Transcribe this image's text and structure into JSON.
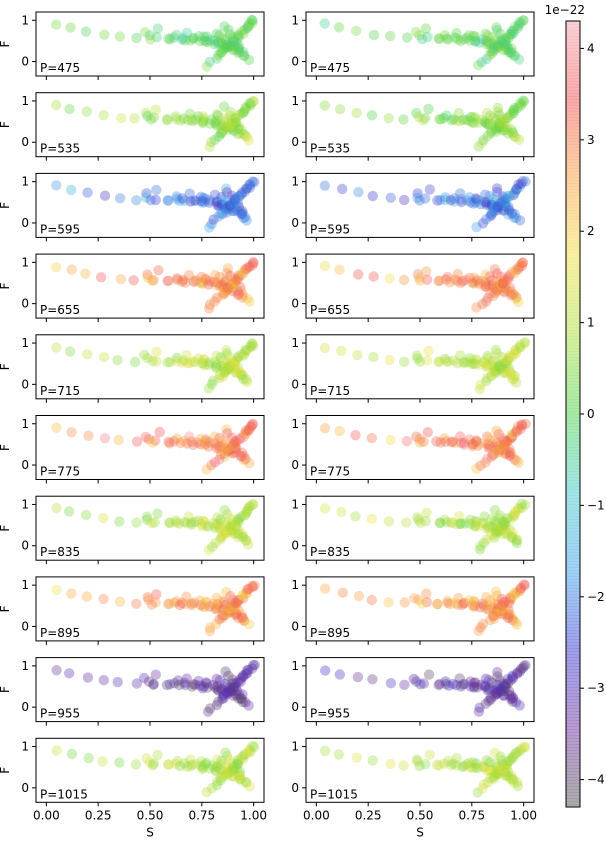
{
  "chart_data": {
    "type": "scatter",
    "xlabel": "S",
    "ylabel": "F",
    "xlim": [
      -0.05,
      1.05
    ],
    "ylim": [
      -0.35,
      1.2
    ],
    "x_ticks": [
      0.0,
      0.25,
      0.5,
      0.75,
      1.0
    ],
    "x_tick_labels": [
      "0.00",
      "0.25",
      "0.50",
      "0.75",
      "1.00"
    ],
    "y_ticks": [
      0,
      1
    ],
    "y_tick_labels": [
      "0",
      "1"
    ],
    "layout": "10 rows x 2 columns of panels, shared axes",
    "panel_labels": [
      "P=475",
      "P=535",
      "P=595",
      "P=655",
      "P=715",
      "P=775",
      "P=835",
      "P=895",
      "P=955",
      "P=1015"
    ],
    "panel_point_values": [
      [
        0.0,
        0.0,
        0.0,
        0.0,
        0.0,
        0.0,
        0.0,
        0.0,
        0.0,
        0.0
      ],
      [
        1,
        0.5,
        0.3,
        0.6,
        0.6,
        0.5,
        0.6,
        0.5,
        0.6,
        0.6
      ],
      [
        -1.7,
        -1.9,
        -2.1,
        -2.2,
        -2.0,
        -2.4,
        -2.2,
        -2.0,
        -2.3,
        -2.1
      ],
      [
        2.0,
        2.4,
        2.7,
        2.9,
        3.0,
        3.1,
        3.2,
        3.3,
        3.3,
        3.4
      ],
      [
        1.1,
        1.0,
        0.9,
        1.0,
        1.1,
        0.8,
        1.0,
        1.2,
        1.0,
        1.1
      ],
      [
        2.3,
        2.6,
        2.8,
        3.0,
        3.1,
        3.2,
        3.4,
        3.5,
        3.5,
        3.6
      ],
      [
        1.0,
        0.9,
        1.0,
        1.1,
        1.0,
        0.9,
        1.1,
        1.0,
        0.9,
        1.0
      ],
      [
        2.2,
        2.3,
        2.5,
        2.6,
        2.8,
        2.9,
        3.0,
        3.1,
        3.2,
        3.3
      ],
      [
        -3.2,
        -3.3,
        -3.3,
        -3.4,
        -3.4,
        -3.5,
        -3.5,
        -3.5,
        -3.5,
        -3.6
      ],
      [
        1.0,
        1.0,
        0.9,
        1.0,
        1.0,
        1.1,
        1.0,
        0.9,
        1.0,
        1.0
      ]
    ],
    "colorbar": {
      "scale_label": "1e−22",
      "ticks": [
        -4,
        -3,
        -2,
        -1,
        0,
        1,
        2,
        3,
        4
      ],
      "tick_labels": [
        "−4",
        "−3",
        "−2",
        "−1",
        "0",
        "1",
        "2",
        "3",
        "4"
      ],
      "range": [
        -4.3,
        4.3
      ],
      "colormap": "gist_rainbow_r with transparency",
      "colors": [
        "#505050",
        "#6a2e9e",
        "#3838d0",
        "#3c9ee8",
        "#40c8c8",
        "#4ad04a",
        "#a8de3a",
        "#f0e040",
        "#f8a040",
        "#f05050",
        "#f0a0a8"
      ]
    }
  }
}
